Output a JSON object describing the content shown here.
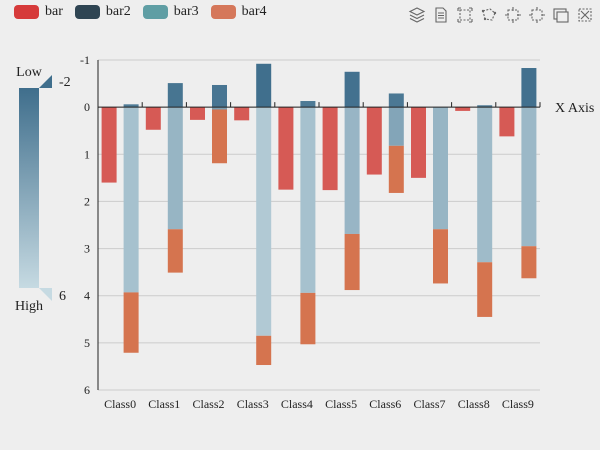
{
  "legend": [
    {
      "label": "bar",
      "color": "#d63a3a"
    },
    {
      "label": "bar2",
      "color": "#2f4553"
    },
    {
      "label": "bar3",
      "color": "#5f9ea4"
    },
    {
      "label": "bar4",
      "color": "#d5775a"
    }
  ],
  "toolbox": [
    {
      "name": "stack-icon"
    },
    {
      "name": "data-view-icon"
    },
    {
      "name": "rect-select-icon"
    },
    {
      "name": "lasso-select-icon"
    },
    {
      "name": "keep-select-icon"
    },
    {
      "name": "clear-select-icon"
    },
    {
      "name": "save-image-icon"
    },
    {
      "name": "restore-icon"
    }
  ],
  "visual_map": {
    "min": -2,
    "max": 6,
    "min_label": "-2",
    "max_label": "6",
    "text_low": "Low",
    "text_high": "High",
    "color_low": "#3f6e8c",
    "color_high": "#c6dae2"
  },
  "chart_data": {
    "type": "bar",
    "categories": [
      "Class0",
      "Class1",
      "Class2",
      "Class3",
      "Class4",
      "Class5",
      "Class6",
      "Class7",
      "Class8",
      "Class9"
    ],
    "xlabel": "X Axis",
    "ylim": [
      -1,
      6
    ],
    "y_inverse": true,
    "yticks": [
      "-1",
      "0",
      "1",
      "2",
      "3",
      "4",
      "5",
      "6"
    ],
    "grid": true,
    "stacks": [
      {
        "id": "one",
        "series": [
          "bar",
          "bar3",
          "bar4"
        ]
      },
      {
        "id": "two",
        "series": [
          "bar2",
          "bar3"
        ]
      }
    ],
    "series": [
      {
        "name": "bar",
        "values": [
          1.6,
          0.48,
          0.27,
          0.28,
          1.75,
          1.76,
          1.43,
          1.5,
          0.08,
          0.62
        ],
        "stack_position": 0
      },
      {
        "name": "bar2",
        "values": [
          -0.06,
          -0.51,
          -0.47,
          -0.92,
          -0.13,
          -0.75,
          -0.29,
          0.0,
          -0.04,
          -0.83
        ]
      },
      {
        "name": "bar3",
        "values": [
          3.93,
          2.59,
          0.05,
          4.85,
          3.94,
          2.69,
          0.82,
          2.59,
          3.29,
          2.95
        ],
        "offsets": [
          0,
          0,
          0,
          0,
          0,
          0,
          0,
          0,
          0,
          0
        ]
      },
      {
        "name": "bar4",
        "values": [
          1.28,
          0.92,
          1.14,
          0.62,
          1.09,
          1.19,
          1.0,
          1.15,
          1.16,
          0.68
        ]
      }
    ]
  }
}
